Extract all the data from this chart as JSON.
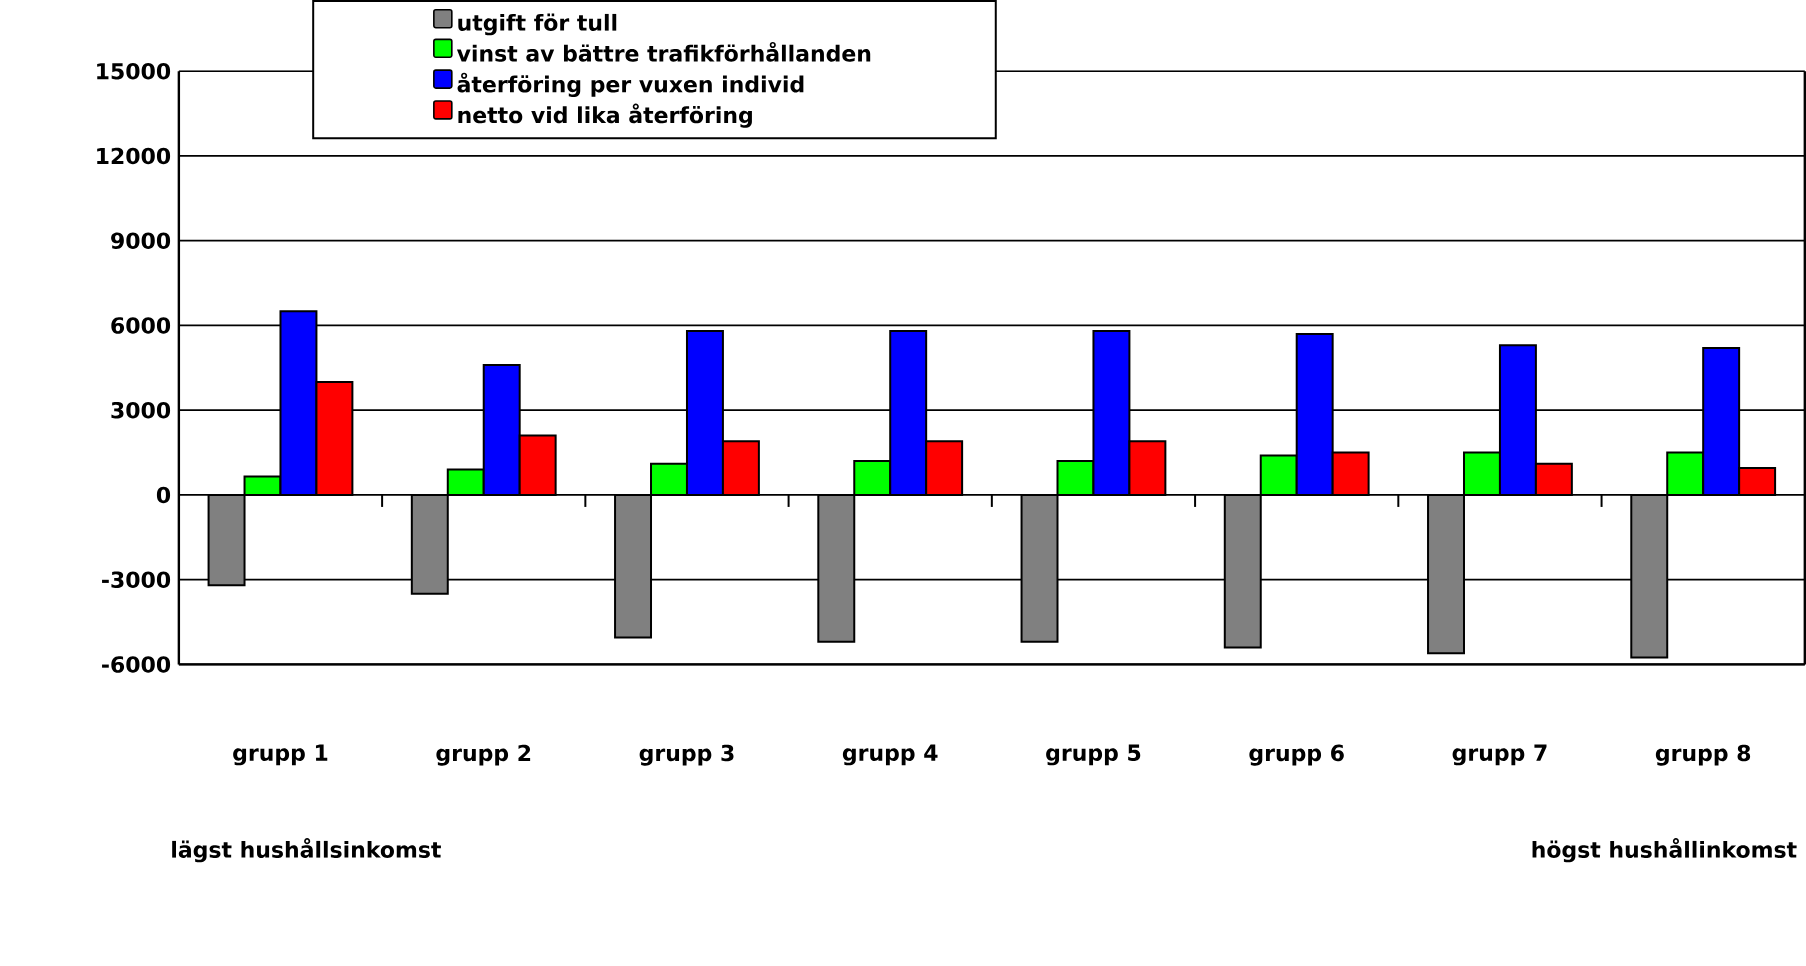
{
  "chart_data": {
    "type": "bar",
    "categories": [
      "grupp 1",
      "grupp 2",
      "grupp 3",
      "grupp 4",
      "grupp 5",
      "grupp 6",
      "grupp 7",
      "grupp 8"
    ],
    "series": [
      {
        "name": "utgift för tull",
        "color": "#808080",
        "values": [
          -3200,
          -3500,
          -5050,
          -5200,
          -5200,
          -5400,
          -5600,
          -5750
        ]
      },
      {
        "name": "vinst av bättre trafikförhållanden",
        "color": "#00ff00",
        "values": [
          650,
          900,
          1100,
          1200,
          1200,
          1400,
          1500,
          1500
        ]
      },
      {
        "name": "återföring per vuxen individ",
        "color": "#0000ff",
        "values": [
          6500,
          4600,
          5800,
          5800,
          5800,
          5700,
          5300,
          5200
        ]
      },
      {
        "name": "netto vid lika återföring",
        "color": "#ff0000",
        "values": [
          4000,
          2100,
          1900,
          1900,
          1900,
          1500,
          1100,
          950
        ]
      }
    ],
    "ylim": [
      -6000,
      15000
    ],
    "yticks": [
      -6000,
      -3000,
      0,
      3000,
      6000,
      9000,
      12000,
      15000
    ],
    "grid": "y",
    "legend": "top",
    "annotations": [
      "lägst hushållsinkomst",
      "högst hushållinkomst"
    ]
  }
}
